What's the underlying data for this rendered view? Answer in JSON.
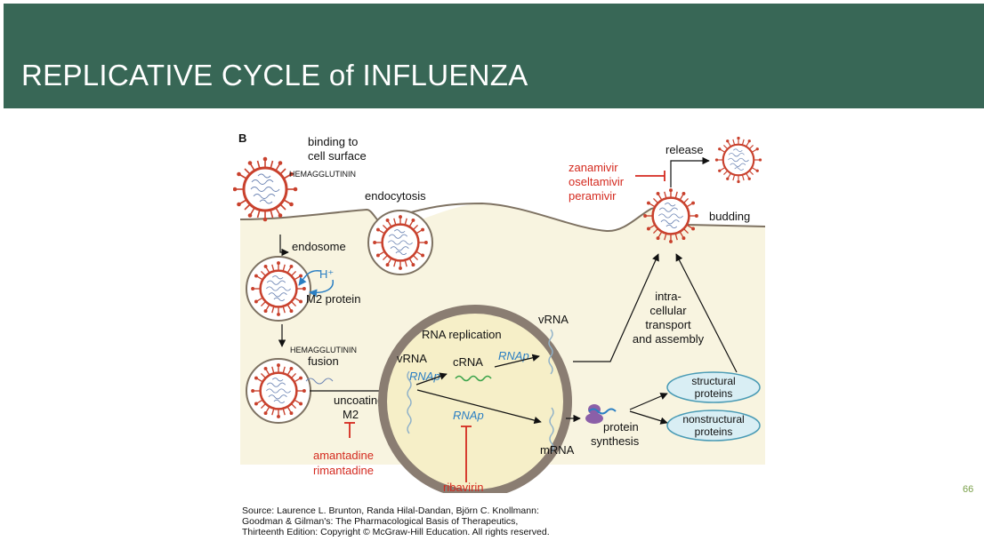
{
  "slide": {
    "title": "REPLICATIVE CYCLE of INFLUENZA",
    "page_number": "66"
  },
  "diagram": {
    "panel_letter": "B",
    "labels": {
      "binding_line1": "binding to",
      "binding_line2": "cell surface",
      "hemagglutinin_top": "HEMAGGLUTININ",
      "endocytosis": "endocytosis",
      "endosome": "endosome",
      "h_plus": "H⁺",
      "m2_protein": "M2 protein",
      "hemagglutinin_fusion": "HEMAGGLUTININ",
      "fusion": "fusion",
      "uncoating": "uncoating",
      "m2": "M2",
      "rna_replication": "RNA replication",
      "vrna_left": "vRNA",
      "crna": "cRNA",
      "rnap_1": "RNAp",
      "rnap_2": "RNAp",
      "rnap_3": "RNAp",
      "vrna_right": "vRNA",
      "mrna": "mRNA",
      "protein_line1": "protein",
      "protein_line2": "synthesis",
      "structural_line1": "structural",
      "structural_line2": "proteins",
      "nonstructural_line1": "nonstructural",
      "nonstructural_line2": "proteins",
      "intra_line1": "intra-",
      "intra_line2": "cellular",
      "intra_line3": "transport",
      "intra_line4": "and assembly",
      "release": "release",
      "budding": "budding"
    },
    "drugs": {
      "neuraminidase_1": "zanamivir",
      "neuraminidase_2": "oseltamivir",
      "neuraminidase_3": "peramivir",
      "m2_1": "amantadine",
      "m2_2": "rimantadine",
      "polymerase": "ribavirin"
    },
    "colors": {
      "header": "#386756",
      "cytoplasm": "#f8f4e0",
      "nucleus_ring": "#8a7d72",
      "nucleus_fill": "#f6efc8",
      "spike": "#c9412d",
      "drug_red": "#d42a1f",
      "rnap_blue": "#2b7fc3",
      "protein_fill": "#d9eef4",
      "protein_stroke": "#4a9bb5"
    }
  },
  "source": {
    "line1": "Source: Laurence L. Brunton, Randa Hilal-Dandan, Björn C. Knollmann:",
    "line2": "Goodman & Gilman's: The Pharmacological Basis of Therapeutics,",
    "line3": "Thirteenth Edition: Copyright © McGraw-Hill Education. All rights reserved."
  }
}
